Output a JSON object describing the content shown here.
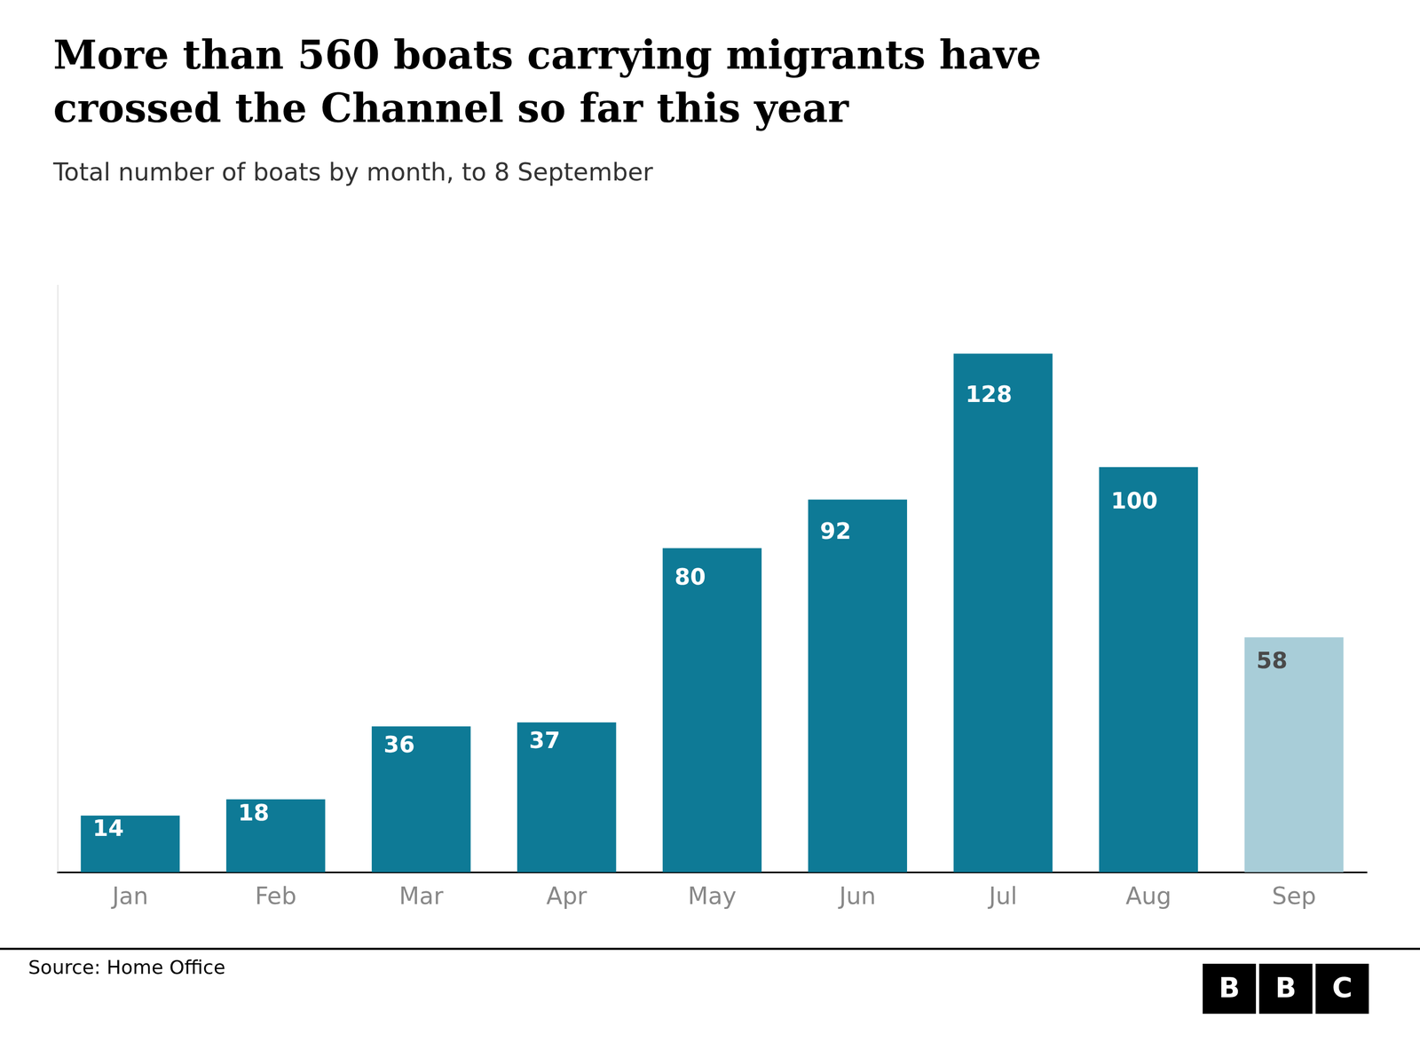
{
  "chart_data": {
    "type": "bar",
    "title": [
      "More than 560 boats carrying migrants have",
      "crossed the Channel so far this year"
    ],
    "subtitle": "Total number of boats by month, to 8 September",
    "annotations": [
      "Source: Home Office",
      "BBC"
    ],
    "categories": [
      "Jan",
      "Feb",
      "Mar",
      "Apr",
      "May",
      "Jun",
      "Jul",
      "Aug",
      "Sep"
    ],
    "values": [
      14,
      18,
      36,
      37,
      80,
      92,
      128,
      100,
      58
    ],
    "colors": [
      "#0e7a96",
      "#0e7a96",
      "#0e7a96",
      "#0e7a96",
      "#0e7a96",
      "#0e7a96",
      "#0e7a96",
      "#0e7a96",
      "#a8cdd8"
    ],
    "ylim": [
      0,
      145
    ],
    "grid": false,
    "data_labels": true,
    "tick_labels": "x"
  }
}
